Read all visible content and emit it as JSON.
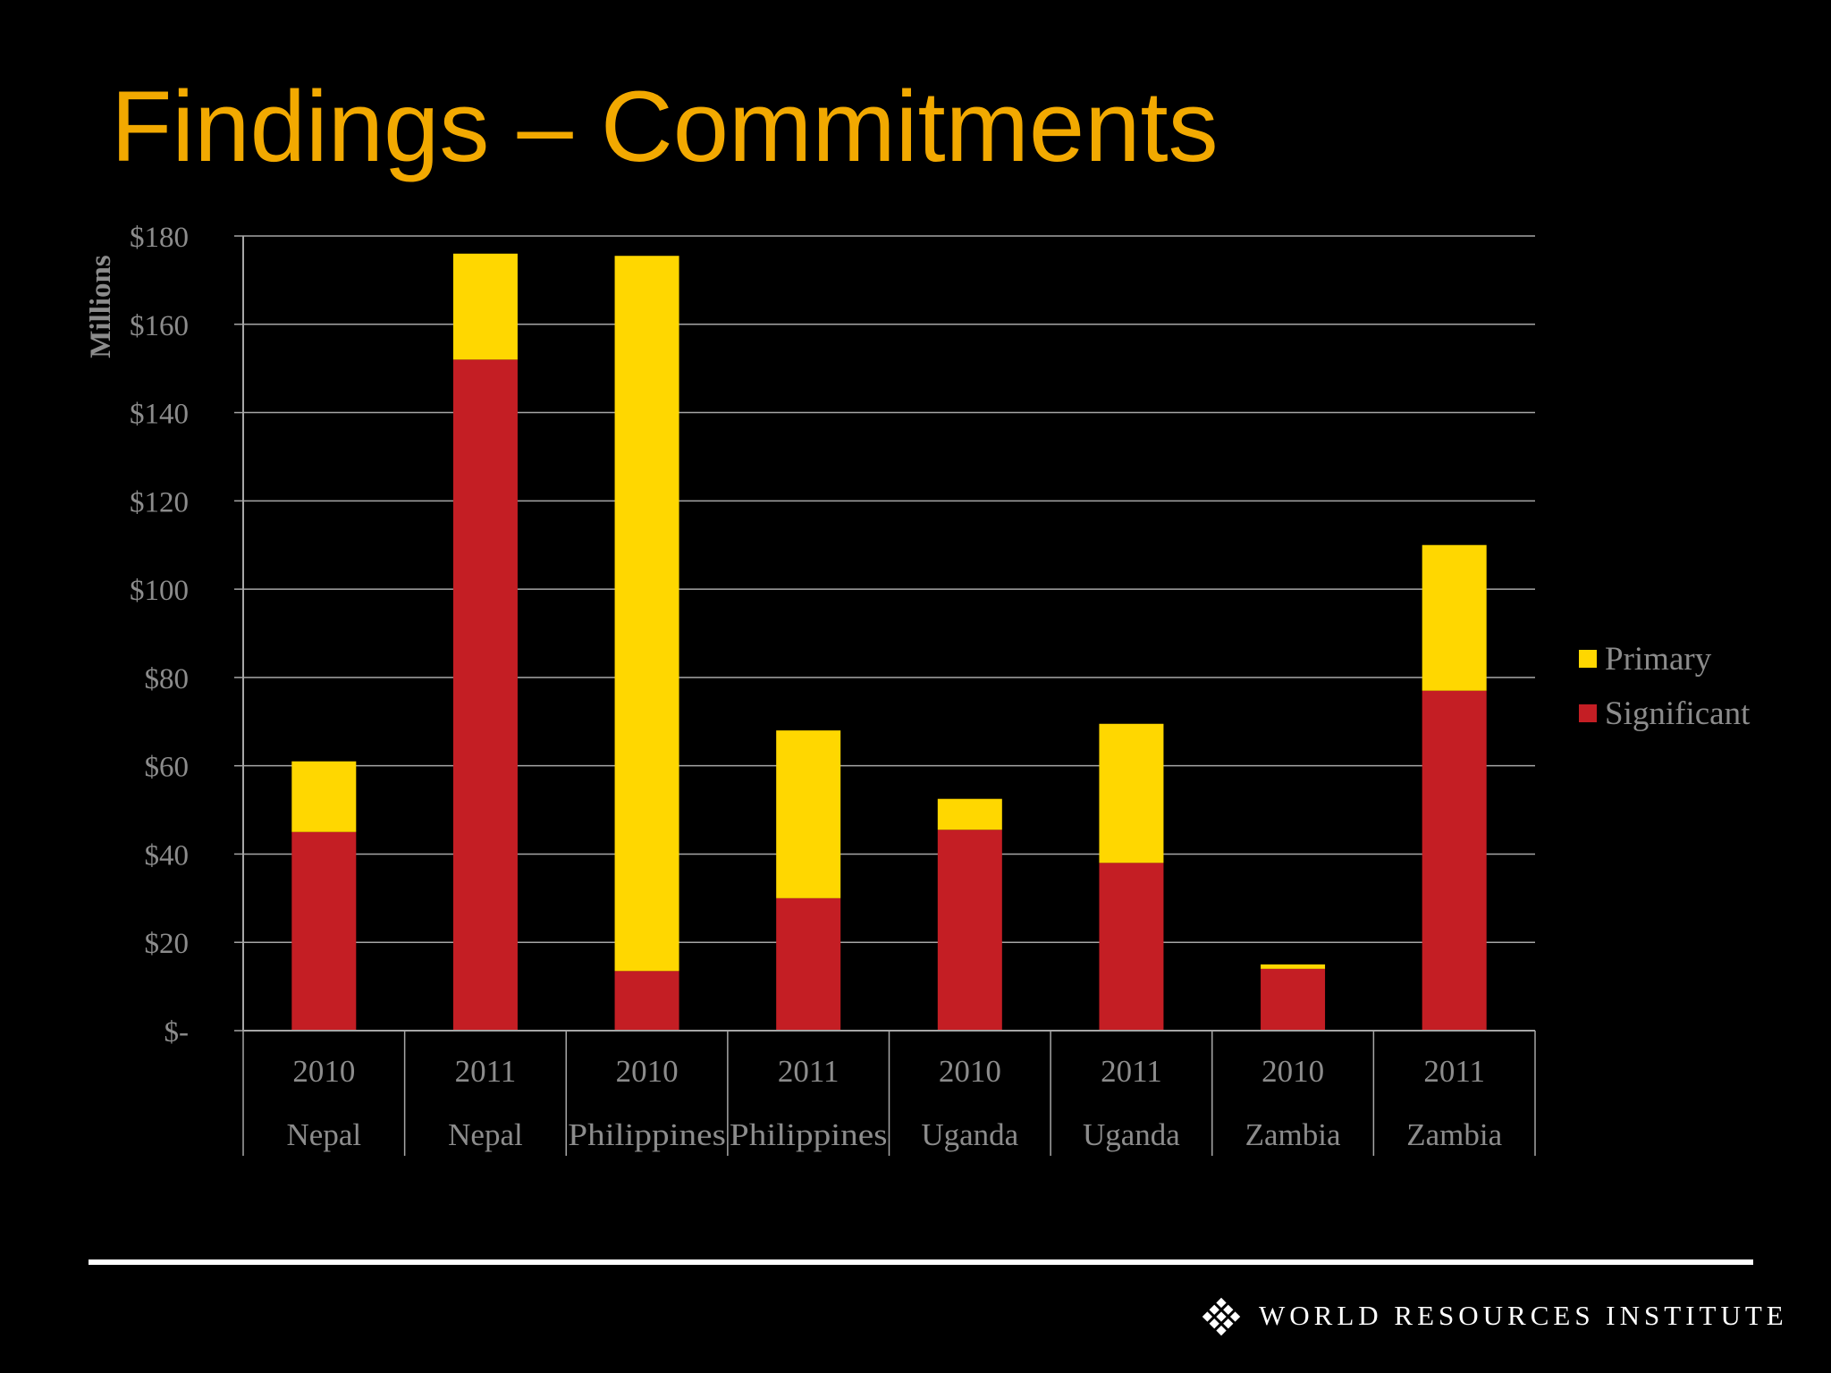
{
  "slide": {
    "title": "Findings – Commitments"
  },
  "chart_data": {
    "type": "bar",
    "stacked": true,
    "ylabel": "Millions",
    "ylim": [
      0,
      180
    ],
    "ytick_values": [
      0,
      20,
      40,
      60,
      80,
      100,
      120,
      140,
      160,
      180
    ],
    "ytick_labels": [
      "$-",
      "$20",
      "$40",
      "$60",
      "$80",
      "$100",
      "$120",
      "$140",
      "$160",
      "$180"
    ],
    "categories": [
      {
        "year": "2010",
        "country": "Nepal"
      },
      {
        "year": "2011",
        "country": "Nepal"
      },
      {
        "year": "2010",
        "country": "Philippines"
      },
      {
        "year": "2011",
        "country": "Philippines"
      },
      {
        "year": "2010",
        "country": "Uganda"
      },
      {
        "year": "2011",
        "country": "Uganda"
      },
      {
        "year": "2010",
        "country": "Zambia"
      },
      {
        "year": "2011",
        "country": "Zambia"
      }
    ],
    "series": [
      {
        "name": "Significant",
        "color": "#C41E24",
        "values": [
          45,
          152,
          13.5,
          30,
          45.5,
          38,
          14,
          77
        ]
      },
      {
        "name": "Primary",
        "color": "#FFD700",
        "values": [
          16,
          24,
          162,
          38,
          7,
          31.5,
          1,
          33
        ]
      }
    ],
    "legend": {
      "position": "right",
      "order": [
        "Primary",
        "Significant"
      ]
    },
    "grid": true
  },
  "footer": {
    "organization": "WORLD RESOURCES INSTITUTE"
  }
}
